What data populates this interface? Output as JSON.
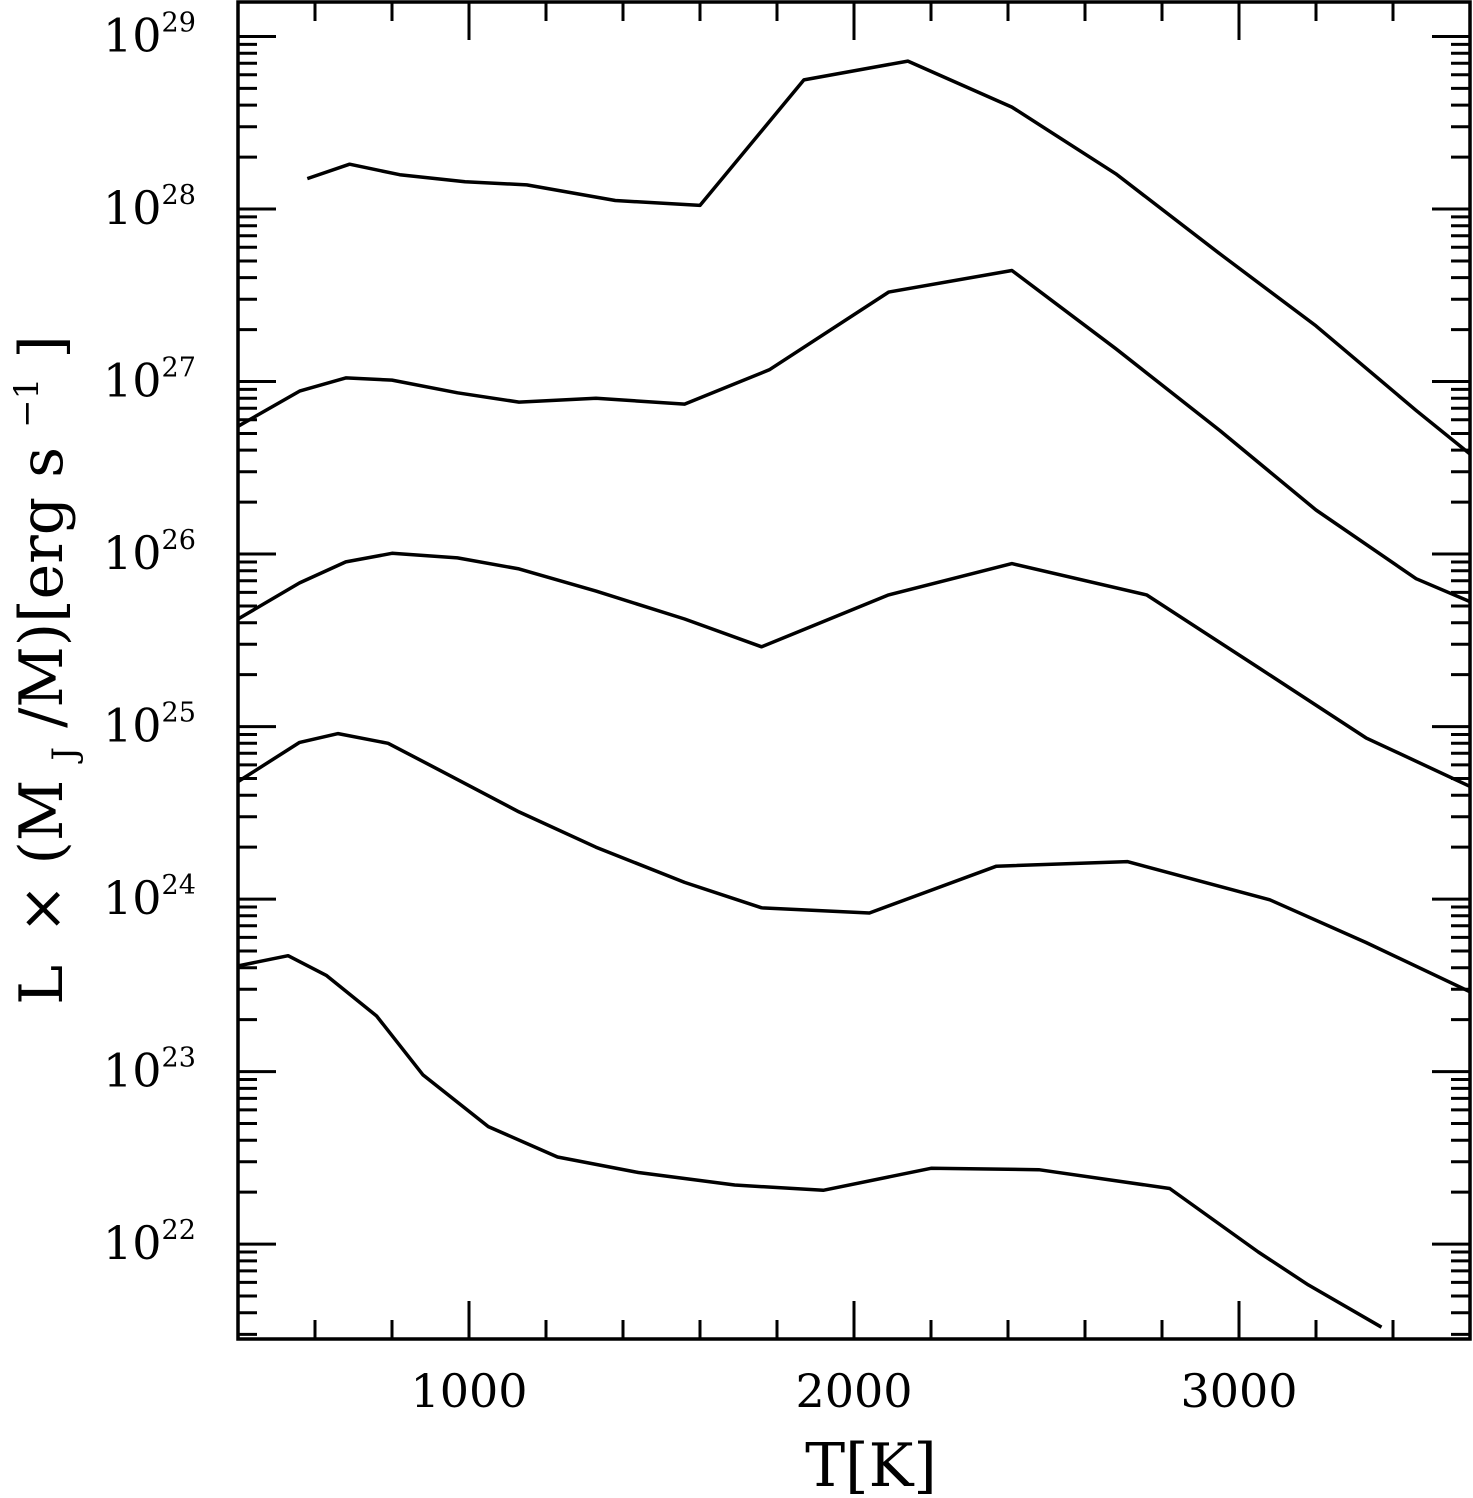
{
  "chart_data": {
    "type": "line",
    "x_axis": {
      "label": "T[K]",
      "range": [
        400,
        3600
      ],
      "major_ticks": [
        1000,
        2000,
        3000
      ],
      "tick_labels": [
        "1000",
        "2000",
        "3000"
      ],
      "minor_step": 200
    },
    "y_axis": {
      "label_parts": {
        "l": "L",
        "times": "×",
        "open": "(M",
        "sub": "J",
        "mid": "/M)[erg s",
        "sup": "−1",
        "close": "]"
      },
      "scale": "log",
      "range_exp": [
        21.45,
        29.2
      ],
      "major_ticks_exp": [
        22,
        23,
        24,
        25,
        26,
        27,
        28,
        29
      ],
      "tick_base": "10"
    },
    "grid": false,
    "legend": "none",
    "series": [
      {
        "points": [
          [
            580,
            1.5e+28
          ],
          [
            690,
            1.82e+28
          ],
          [
            820,
            1.58e+28
          ],
          [
            990,
            1.44e+28
          ],
          [
            1150,
            1.38e+28
          ],
          [
            1380,
            1.12e+28
          ],
          [
            1600,
            1.05e+28
          ],
          [
            1870,
            5.6e+28
          ],
          [
            2140,
            7.2e+28
          ],
          [
            2410,
            3.9e+28
          ],
          [
            2680,
            1.6e+28
          ],
          [
            2950,
            5.5e+27
          ],
          [
            3200,
            2.1e+27
          ],
          [
            3460,
            6.8e+26
          ],
          [
            3600,
            3.8e+26
          ]
        ]
      },
      {
        "points": [
          [
            400,
            5.5e+26
          ],
          [
            560,
            8.8e+26
          ],
          [
            680,
            1.05e+27
          ],
          [
            800,
            1.02e+27
          ],
          [
            970,
            8.6e+26
          ],
          [
            1130,
            7.6e+26
          ],
          [
            1330,
            8e+26
          ],
          [
            1560,
            7.4e+26
          ],
          [
            1780,
            1.17e+27
          ],
          [
            2090,
            3.3e+27
          ],
          [
            2410,
            4.4e+27
          ],
          [
            2680,
            1.55e+27
          ],
          [
            2950,
            5.2e+26
          ],
          [
            3200,
            1.8e+26
          ],
          [
            3460,
            7.2e+25
          ],
          [
            3600,
            5.3e+25
          ]
        ]
      },
      {
        "points": [
          [
            400,
            4.2e+25
          ],
          [
            560,
            6.8e+25
          ],
          [
            680,
            9e+25
          ],
          [
            800,
            1.01e+26
          ],
          [
            970,
            9.5e+25
          ],
          [
            1130,
            8.2e+25
          ],
          [
            1330,
            6.1e+25
          ],
          [
            1560,
            4.2e+25
          ],
          [
            1760,
            2.9e+25
          ],
          [
            2090,
            5.8e+25
          ],
          [
            2410,
            8.8e+25
          ],
          [
            2760,
            5.8e+25
          ],
          [
            3050,
            2.2e+25
          ],
          [
            3330,
            8.6e+24
          ],
          [
            3600,
            4.5e+24
          ]
        ]
      },
      {
        "points": [
          [
            400,
            4.8e+24
          ],
          [
            560,
            8.1e+24
          ],
          [
            660,
            9.1e+24
          ],
          [
            790,
            8e+24
          ],
          [
            930,
            5.5e+24
          ],
          [
            1130,
            3.2e+24
          ],
          [
            1330,
            2e+24
          ],
          [
            1560,
            1.25e+24
          ],
          [
            1760,
            8.9e+23
          ],
          [
            2040,
            8.3e+23
          ],
          [
            2370,
            1.55e+24
          ],
          [
            2710,
            1.65e+24
          ],
          [
            3080,
            9.9e+23
          ],
          [
            3330,
            5.6e+23
          ],
          [
            3600,
            2.9e+23
          ]
        ]
      },
      {
        "points": [
          [
            400,
            4.1e+23
          ],
          [
            530,
            4.7e+23
          ],
          [
            630,
            3.6e+23
          ],
          [
            760,
            2.1e+23
          ],
          [
            880,
            9.6e+22
          ],
          [
            1050,
            4.8e+22
          ],
          [
            1230,
            3.2e+22
          ],
          [
            1440,
            2.6e+22
          ],
          [
            1690,
            2.2e+22
          ],
          [
            1920,
            2.05e+22
          ],
          [
            2200,
            2.75e+22
          ],
          [
            2480,
            2.7e+22
          ],
          [
            2820,
            2.1e+22
          ],
          [
            3050,
            9e+21
          ],
          [
            3180,
            5.8e+21
          ],
          [
            3370,
            3.3e+21
          ]
        ]
      }
    ]
  }
}
